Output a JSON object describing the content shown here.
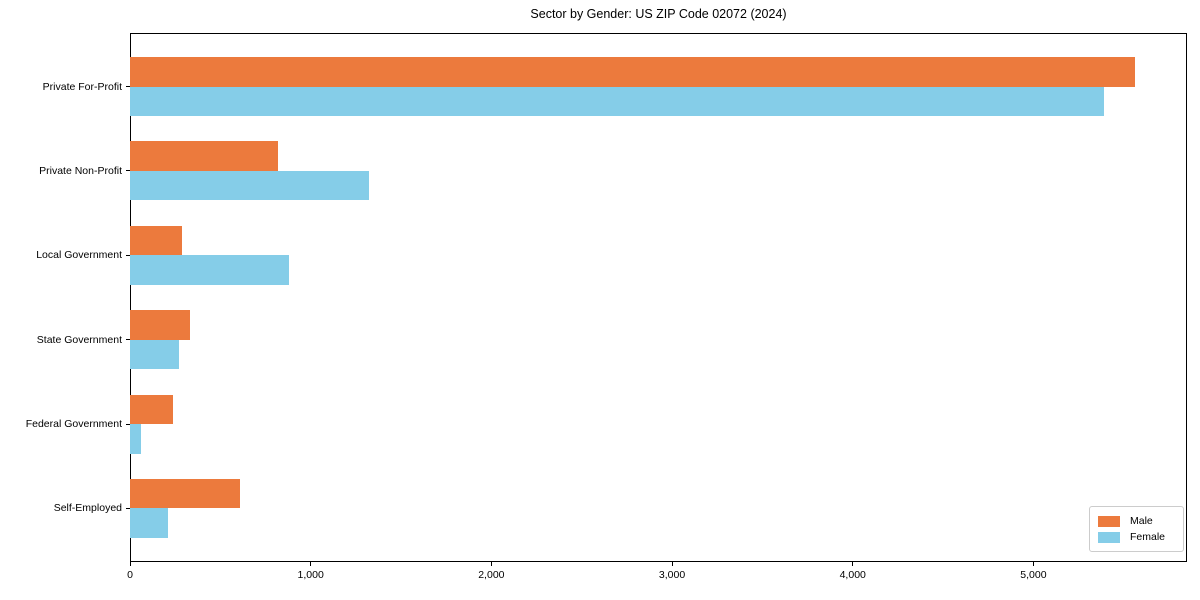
{
  "chart_data": {
    "type": "bar",
    "orientation": "horizontal",
    "title": "Sector by Gender: US ZIP Code 02072 (2024)",
    "categories": [
      "Private For-Profit",
      "Private Non-Profit",
      "Local Government",
      "State Government",
      "Federal Government",
      "Self-Employed"
    ],
    "series": [
      {
        "name": "Male",
        "color": "#ec7a3d",
        "values": [
          5560,
          820,
          290,
          330,
          240,
          610
        ]
      },
      {
        "name": "Female",
        "color": "#85cde8",
        "values": [
          5390,
          1320,
          880,
          270,
          60,
          210
        ]
      }
    ],
    "xlabel": "",
    "ylabel": "",
    "xlim": [
      0,
      5850
    ],
    "x_ticks": [
      0,
      1000,
      2000,
      3000,
      4000,
      5000
    ],
    "x_tick_labels": [
      "0",
      "1,000",
      "2,000",
      "3,000",
      "4,000",
      "5,000"
    ],
    "grid": false,
    "legend": {
      "position": "lower right",
      "entries": [
        "Male",
        "Female"
      ]
    }
  }
}
